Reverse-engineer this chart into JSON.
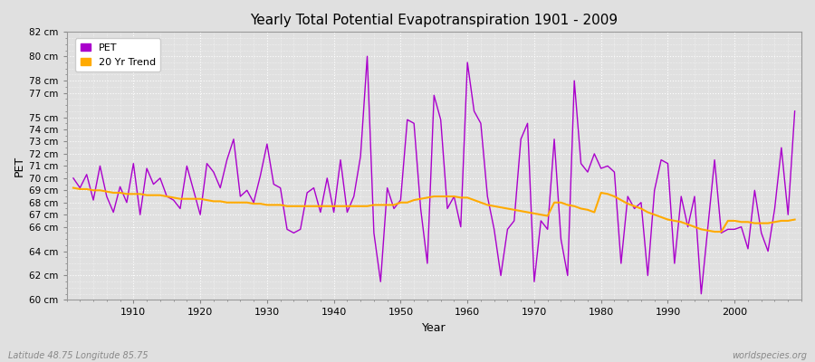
{
  "title": "Yearly Total Potential Evapotranspiration 1901 - 2009",
  "ylabel": "PET",
  "xlabel": "Year",
  "subtitle_left": "Latitude 48.75 Longitude 85.75",
  "subtitle_right": "worldspecies.org",
  "pet_color": "#aa00cc",
  "trend_color": "#ffaa00",
  "fig_bg_color": "#e0e0e0",
  "plot_bg_color": "#e0e0e0",
  "grid_color": "#ffffff",
  "years": [
    1901,
    1902,
    1903,
    1904,
    1905,
    1906,
    1907,
    1908,
    1909,
    1910,
    1911,
    1912,
    1913,
    1914,
    1915,
    1916,
    1917,
    1918,
    1919,
    1920,
    1921,
    1922,
    1923,
    1924,
    1925,
    1926,
    1927,
    1928,
    1929,
    1930,
    1931,
    1932,
    1933,
    1934,
    1935,
    1936,
    1937,
    1938,
    1939,
    1940,
    1941,
    1942,
    1943,
    1944,
    1945,
    1946,
    1947,
    1948,
    1949,
    1950,
    1951,
    1952,
    1953,
    1954,
    1955,
    1956,
    1957,
    1958,
    1959,
    1960,
    1961,
    1962,
    1963,
    1964,
    1965,
    1966,
    1967,
    1968,
    1969,
    1970,
    1971,
    1972,
    1973,
    1974,
    1975,
    1976,
    1977,
    1978,
    1979,
    1980,
    1981,
    1982,
    1983,
    1984,
    1985,
    1986,
    1987,
    1988,
    1989,
    1990,
    1991,
    1992,
    1993,
    1994,
    1995,
    1996,
    1997,
    1998,
    1999,
    2000,
    2001,
    2002,
    2003,
    2004,
    2005,
    2006,
    2007,
    2008,
    2009
  ],
  "pet_values": [
    70.0,
    69.2,
    70.3,
    68.2,
    71.0,
    68.5,
    67.2,
    69.3,
    68.0,
    71.2,
    67.0,
    70.8,
    69.5,
    70.0,
    68.5,
    68.2,
    67.5,
    71.0,
    69.0,
    67.0,
    71.2,
    70.5,
    69.2,
    71.5,
    73.2,
    68.5,
    69.0,
    68.0,
    70.2,
    72.8,
    69.5,
    69.2,
    65.8,
    65.5,
    65.8,
    68.8,
    69.2,
    67.2,
    70.0,
    67.2,
    71.5,
    67.2,
    68.5,
    71.8,
    80.0,
    65.5,
    61.5,
    69.2,
    67.5,
    68.2,
    74.8,
    74.5,
    67.5,
    63.0,
    76.8,
    74.8,
    67.5,
    68.5,
    66.0,
    79.5,
    75.5,
    74.5,
    68.5,
    65.8,
    62.0,
    65.8,
    66.5,
    73.2,
    74.5,
    61.5,
    66.5,
    65.8,
    73.2,
    65.0,
    62.0,
    78.0,
    71.2,
    70.5,
    72.0,
    70.8,
    71.0,
    70.5,
    63.0,
    68.5,
    67.5,
    68.0,
    62.0,
    69.0,
    71.5,
    71.2,
    63.0,
    68.5,
    66.0,
    68.5,
    60.5,
    66.0,
    71.5,
    65.5,
    65.8,
    65.8,
    66.0,
    64.2,
    69.0,
    65.5,
    64.0,
    67.5,
    72.5,
    67.0,
    75.5
  ],
  "trend_values": [
    69.2,
    69.1,
    69.1,
    69.0,
    69.0,
    68.9,
    68.8,
    68.8,
    68.7,
    68.7,
    68.7,
    68.6,
    68.6,
    68.6,
    68.5,
    68.4,
    68.3,
    68.3,
    68.3,
    68.3,
    68.2,
    68.1,
    68.1,
    68.0,
    68.0,
    68.0,
    68.0,
    67.9,
    67.9,
    67.8,
    67.8,
    67.8,
    67.7,
    67.7,
    67.7,
    67.7,
    67.7,
    67.7,
    67.7,
    67.7,
    67.7,
    67.7,
    67.7,
    67.7,
    67.7,
    67.8,
    67.8,
    67.8,
    67.8,
    68.0,
    68.0,
    68.2,
    68.3,
    68.4,
    68.5,
    68.5,
    68.5,
    68.5,
    68.4,
    68.4,
    68.2,
    68.0,
    67.8,
    67.7,
    67.6,
    67.5,
    67.4,
    67.3,
    67.2,
    67.1,
    67.0,
    66.9,
    68.0,
    68.0,
    67.8,
    67.7,
    67.5,
    67.4,
    67.2,
    68.8,
    68.7,
    68.5,
    68.2,
    67.9,
    67.7,
    67.5,
    67.2,
    67.0,
    66.8,
    66.6,
    66.5,
    66.4,
    66.2,
    66.0,
    65.8,
    65.7,
    65.6,
    65.6,
    66.5,
    66.5,
    66.4,
    66.4,
    66.3,
    66.3,
    66.3,
    66.4,
    66.5,
    66.5,
    66.6
  ],
  "ylim": [
    60,
    82
  ],
  "yticks": [
    60,
    62,
    64,
    66,
    67,
    68,
    69,
    70,
    71,
    72,
    73,
    74,
    75,
    77,
    78,
    80,
    82
  ],
  "xlim": [
    1900,
    2010
  ],
  "xticks": [
    1910,
    1920,
    1930,
    1940,
    1950,
    1960,
    1970,
    1980,
    1990,
    2000
  ]
}
